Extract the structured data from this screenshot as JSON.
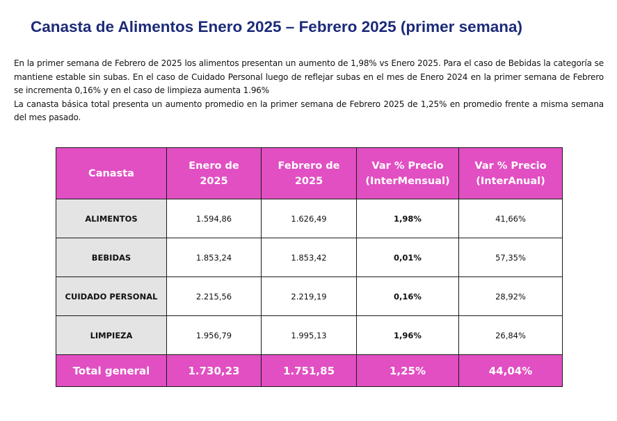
{
  "title": "Canasta de Alimentos Enero 2025 – Febrero 2025 (primer semana)",
  "intro": {
    "paragraph1": "En la primer semana de Febrero de 2025 los alimentos presentan un aumento de 1,98% vs Enero 2025. Para el caso de Bebidas la categoría se mantiene estable sin subas. En el caso de Cuidado Personal luego de reflejar subas en el mes de Enero 2024 en la primer semana de Febrero se incrementa 0,16% y en el caso de limpieza aumenta 1.96%",
    "paragraph2": "La canasta básica total presenta un aumento promedio en la primer semana de Febrero 2025 de 1,25% en promedio frente a misma semana del mes pasado."
  },
  "colors": {
    "title": "#1c2a78",
    "header_bg": "#e14fc2",
    "label_bg": "#e4e4e4",
    "border": "#1a1a1a"
  },
  "table": {
    "headers": [
      {
        "line1": "Canasta",
        "line2": ""
      },
      {
        "line1": "Enero de",
        "line2": "2025"
      },
      {
        "line1": "Febrero de",
        "line2": "2025"
      },
      {
        "line1": "Var % Precio",
        "line2": "(InterMensual)"
      },
      {
        "line1": "Var % Precio",
        "line2": "(InterAnual)"
      }
    ],
    "rows": [
      {
        "canasta": "ALIMENTOS",
        "enero": "1.594,86",
        "febrero": "1.626,49",
        "var_mensual": "1,98%",
        "var_anual": "41,66%"
      },
      {
        "canasta": "BEBIDAS",
        "enero": "1.853,24",
        "febrero": "1.853,42",
        "var_mensual": "0,01%",
        "var_anual": "57,35%"
      },
      {
        "canasta": "CUIDADO PERSONAL",
        "enero": "2.215,56",
        "febrero": "2.219,19",
        "var_mensual": "0,16%",
        "var_anual": "28,92%"
      },
      {
        "canasta": "LIMPIEZA",
        "enero": "1.956,79",
        "febrero": "1.995,13",
        "var_mensual": "1,96%",
        "var_anual": "26,84%"
      }
    ],
    "total": {
      "label": "Total general",
      "enero": "1.730,23",
      "febrero": "1.751,85",
      "var_mensual": "1,25%",
      "var_anual": "44,04%"
    }
  }
}
